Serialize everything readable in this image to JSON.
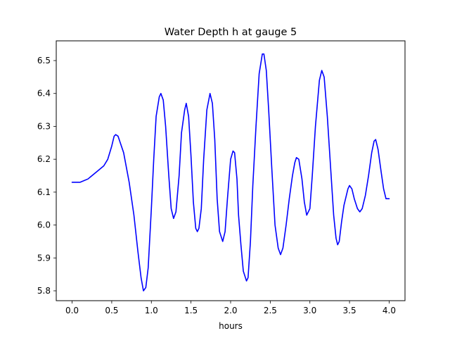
{
  "chart_data": {
    "type": "line",
    "title": "Water Depth h at gauge 5",
    "xlabel": "hours",
    "ylabel": "",
    "xlim": [
      -0.2,
      4.2
    ],
    "ylim": [
      5.77,
      6.56
    ],
    "xticks": [
      0.0,
      0.5,
      1.0,
      1.5,
      2.0,
      2.5,
      3.0,
      3.5,
      4.0
    ],
    "xtick_labels": [
      "0.0",
      "0.5",
      "1.0",
      "1.5",
      "2.0",
      "2.5",
      "3.0",
      "3.5",
      "4.0"
    ],
    "yticks": [
      5.8,
      5.9,
      6.0,
      6.1,
      6.2,
      6.3,
      6.4,
      6.5
    ],
    "ytick_labels": [
      "5.8",
      "5.9",
      "6.0",
      "6.1",
      "6.2",
      "6.3",
      "6.4",
      "6.5"
    ],
    "grid": false,
    "series": [
      {
        "color": "#0000ff",
        "x": [
          0.0,
          0.1,
          0.2,
          0.3,
          0.4,
          0.45,
          0.5,
          0.53,
          0.55,
          0.58,
          0.65,
          0.72,
          0.78,
          0.83,
          0.87,
          0.9,
          0.93,
          0.96,
          1.0,
          1.03,
          1.06,
          1.1,
          1.12,
          1.15,
          1.18,
          1.22,
          1.25,
          1.28,
          1.31,
          1.35,
          1.38,
          1.42,
          1.44,
          1.47,
          1.5,
          1.53,
          1.56,
          1.58,
          1.6,
          1.63,
          1.66,
          1.7,
          1.74,
          1.77,
          1.8,
          1.83,
          1.86,
          1.9,
          1.93,
          1.96,
          2.0,
          2.03,
          2.05,
          2.08,
          2.1,
          2.13,
          2.16,
          2.2,
          2.22,
          2.25,
          2.28,
          2.32,
          2.36,
          2.4,
          2.42,
          2.45,
          2.48,
          2.52,
          2.56,
          2.6,
          2.63,
          2.66,
          2.7,
          2.74,
          2.78,
          2.81,
          2.83,
          2.86,
          2.9,
          2.93,
          2.96,
          3.0,
          3.03,
          3.07,
          3.12,
          3.15,
          3.18,
          3.22,
          3.26,
          3.3,
          3.33,
          3.35,
          3.37,
          3.4,
          3.43,
          3.46,
          3.48,
          3.5,
          3.53,
          3.56,
          3.6,
          3.63,
          3.66,
          3.7,
          3.74,
          3.78,
          3.81,
          3.83,
          3.86,
          3.9,
          3.93,
          3.96,
          4.0
        ],
        "y": [
          6.13,
          6.13,
          6.14,
          6.16,
          6.18,
          6.2,
          6.24,
          6.27,
          6.275,
          6.27,
          6.22,
          6.13,
          6.03,
          5.92,
          5.84,
          5.8,
          5.81,
          5.87,
          6.05,
          6.2,
          6.33,
          6.39,
          6.4,
          6.38,
          6.3,
          6.15,
          6.05,
          6.02,
          6.04,
          6.15,
          6.28,
          6.35,
          6.37,
          6.33,
          6.21,
          6.07,
          5.99,
          5.98,
          5.99,
          6.05,
          6.2,
          6.35,
          6.4,
          6.37,
          6.26,
          6.08,
          5.98,
          5.95,
          5.98,
          6.08,
          6.2,
          6.225,
          6.22,
          6.14,
          6.03,
          5.94,
          5.86,
          5.83,
          5.84,
          5.95,
          6.12,
          6.3,
          6.46,
          6.52,
          6.52,
          6.47,
          6.35,
          6.17,
          6.0,
          5.93,
          5.91,
          5.93,
          6.0,
          6.08,
          6.15,
          6.19,
          6.205,
          6.2,
          6.14,
          6.07,
          6.03,
          6.05,
          6.15,
          6.3,
          6.44,
          6.47,
          6.45,
          6.33,
          6.18,
          6.03,
          5.96,
          5.94,
          5.95,
          6.01,
          6.06,
          6.09,
          6.11,
          6.12,
          6.11,
          6.08,
          6.05,
          6.04,
          6.05,
          6.09,
          6.15,
          6.22,
          6.255,
          6.26,
          6.23,
          6.16,
          6.11,
          6.08,
          6.08
        ]
      }
    ]
  }
}
